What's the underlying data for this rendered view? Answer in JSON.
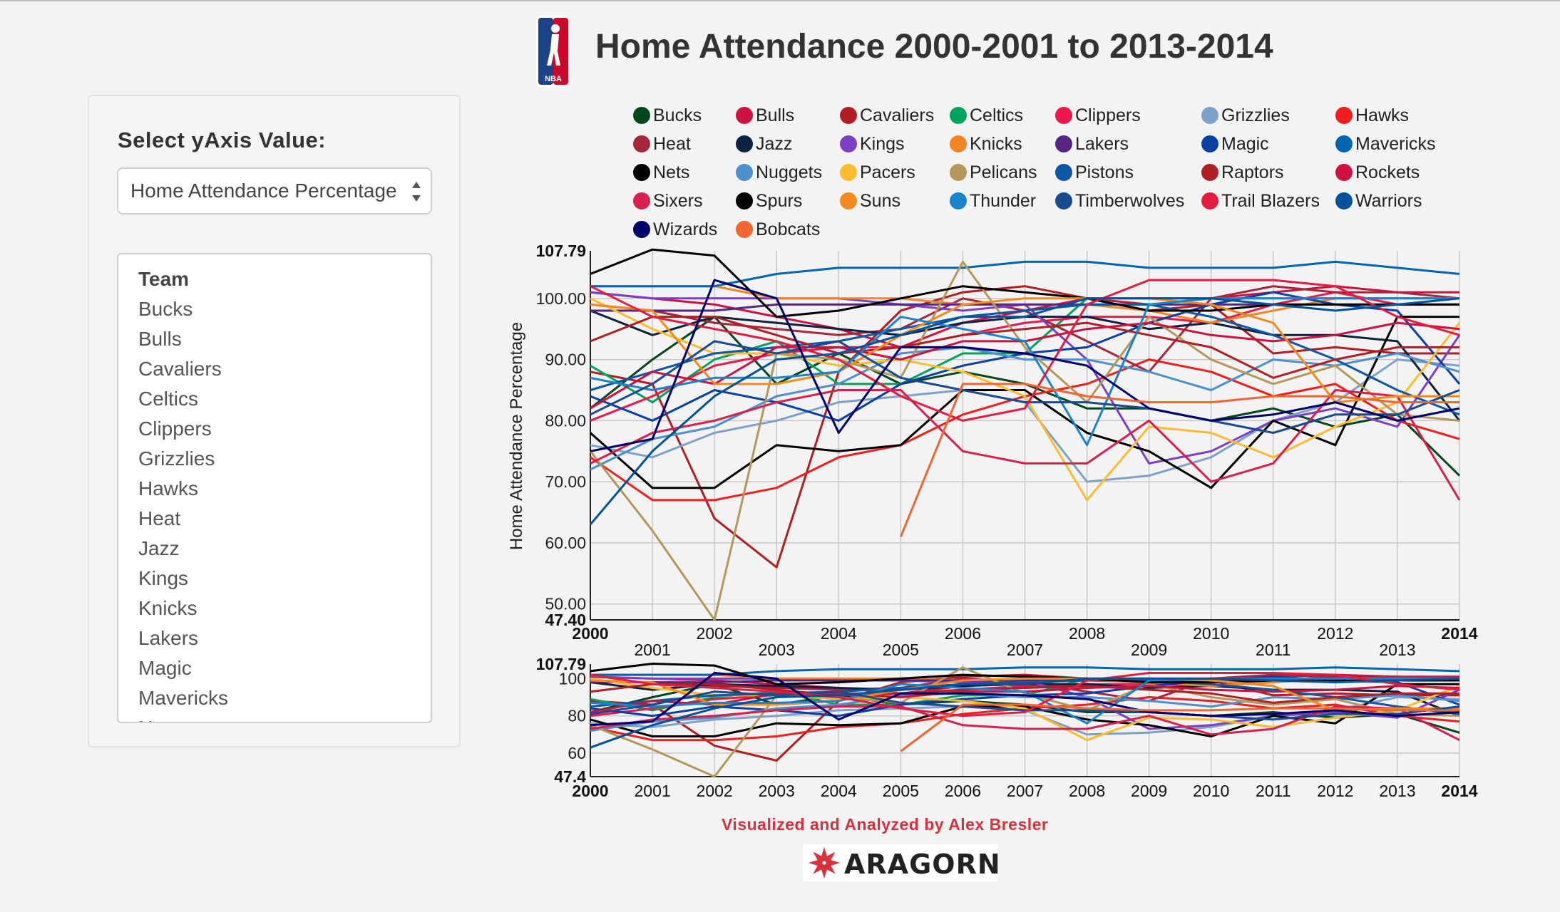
{
  "page": {
    "title": "Home Attendance 2000-2001 to 2013-2014",
    "credit": "Visualized and Analyzed by Alex Bresler",
    "company": "ARAGORN",
    "logo_text": "NBA"
  },
  "sidebar": {
    "label": "Select yAxis Value:",
    "select_value": "Home Attendance Percentage",
    "list_header": "Team",
    "teams": [
      "Bucks",
      "Bulls",
      "Cavaliers",
      "Celtics",
      "Clippers",
      "Grizzlies",
      "Hawks",
      "Heat",
      "Jazz",
      "Kings",
      "Knicks",
      "Lakers",
      "Magic",
      "Mavericks",
      "Nets"
    ]
  },
  "colors": {
    "background": "#f3f3f3",
    "grid": "#c8c8c8",
    "credit": "#d6313c"
  },
  "chart_data": [
    {
      "type": "line",
      "ylabel": "Home Attendance Percentage",
      "xlabel": "",
      "xlim": [
        2000,
        2014
      ],
      "ylim": [
        47.4,
        107.79
      ],
      "y_ticks": [
        "50.00",
        "60.00",
        "70.00",
        "80.00",
        "90.00",
        "100.00"
      ],
      "y_min_label": "47.40",
      "y_max_label": "107.79",
      "x_ticks_row1": [
        "2000",
        "2002",
        "2004",
        "2006",
        "2008",
        "2010",
        "2012",
        "2014"
      ],
      "x_ticks_row2": [
        "2001",
        "2003",
        "2005",
        "2007",
        "2009",
        "2011",
        "2013"
      ],
      "grid": true,
      "legend": "top",
      "x": [
        2000,
        2001,
        2002,
        2003,
        2004,
        2005,
        2006,
        2007,
        2008,
        2009,
        2010,
        2011,
        2012,
        2013,
        2014
      ],
      "series": [
        {
          "name": "Bucks",
          "color": "#00471b",
          "values": [
            82,
            90,
            97,
            86,
            91,
            86,
            88,
            86,
            82,
            82,
            80,
            82,
            79,
            81,
            71
          ]
        },
        {
          "name": "Bulls",
          "color": "#ce1141",
          "values": [
            101,
            100,
            99,
            97,
            95,
            92,
            96,
            98,
            100,
            99,
            100,
            101,
            102,
            101,
            101
          ]
        },
        {
          "name": "Cavaliers",
          "color": "#b01e23",
          "values": [
            88,
            86,
            64,
            56,
            88,
            98,
            101,
            102,
            100,
            98,
            99,
            91,
            92,
            91,
            91
          ]
        },
        {
          "name": "Celtics",
          "color": "#00a35c",
          "values": [
            89,
            83,
            90,
            93,
            86,
            86,
            91,
            91,
            100,
            100,
            100,
            100,
            100,
            100,
            100
          ]
        },
        {
          "name": "Clippers",
          "color": "#ed174c",
          "values": [
            80,
            84,
            89,
            91,
            92,
            92,
            94,
            96,
            97,
            97,
            96,
            99,
            101,
            99,
            99
          ]
        },
        {
          "name": "Grizzlies",
          "color": "#7ea1c9",
          "values": [
            76,
            74,
            78,
            80,
            83,
            84,
            85,
            83,
            70,
            71,
            74,
            80,
            83,
            90,
            89
          ]
        },
        {
          "name": "Hawks",
          "color": "#f21d1d",
          "values": [
            74,
            67,
            67,
            69,
            74,
            76,
            81,
            84,
            86,
            90,
            88,
            84,
            86,
            80,
            77
          ]
        },
        {
          "name": "Heat",
          "color": "#a6263c",
          "values": [
            99,
            98,
            96,
            95,
            94,
            95,
            100,
            98,
            93,
            88,
            100,
            102,
            101,
            101,
            100
          ]
        },
        {
          "name": "Jazz",
          "color": "#0c2340",
          "values": [
            98,
            94,
            97,
            96,
            95,
            94,
            96,
            97,
            97,
            95,
            96,
            94,
            94,
            93,
            80
          ]
        },
        {
          "name": "Kings",
          "color": "#7b3fc4",
          "values": [
            101,
            100,
            100,
            100,
            100,
            99,
            98,
            99,
            90,
            73,
            75,
            80,
            82,
            79,
            94
          ]
        },
        {
          "name": "Knicks",
          "color": "#f58426",
          "values": [
            102,
            102,
            102,
            100,
            100,
            100,
            99,
            99,
            99,
            98,
            96,
            98,
            100,
            100,
            100
          ]
        },
        {
          "name": "Lakers",
          "color": "#552583",
          "values": [
            98,
            98,
            98,
            99,
            99,
            99,
            99,
            99,
            99,
            99,
            99,
            99,
            99,
            99,
            99
          ]
        },
        {
          "name": "Magic",
          "color": "#0a3fa3",
          "values": [
            84,
            80,
            85,
            83,
            80,
            86,
            89,
            91,
            92,
            96,
            99,
            101,
            99,
            98,
            86
          ]
        },
        {
          "name": "Mavericks",
          "color": "#0064b1",
          "values": [
            102,
            102,
            102,
            104,
            105,
            105,
            105,
            106,
            106,
            105,
            105,
            105,
            106,
            105,
            104
          ]
        },
        {
          "name": "Nets",
          "color": "#000000",
          "values": [
            78,
            69,
            69,
            76,
            75,
            76,
            85,
            85,
            78,
            75,
            69,
            80,
            76,
            97,
            97
          ]
        },
        {
          "name": "Nuggets",
          "color": "#4d90cd",
          "values": [
            72,
            77,
            79,
            84,
            86,
            91,
            92,
            90,
            90,
            88,
            85,
            90,
            89,
            91,
            88
          ]
        },
        {
          "name": "Pacers",
          "color": "#fdbb30",
          "values": [
            100,
            95,
            91,
            91,
            89,
            90,
            88,
            84,
            67,
            79,
            78,
            74,
            79,
            83,
            96
          ]
        },
        {
          "name": "Pelicans",
          "color": "#b4975a",
          "values": [
            75,
            62,
            47.4,
            91,
            90,
            87,
            106,
            92,
            83,
            97,
            90,
            86,
            89,
            81,
            80
          ]
        },
        {
          "name": "Pistons",
          "color": "#0b57a4",
          "values": [
            85,
            88,
            91,
            92,
            93,
            95,
            97,
            98,
            99,
            99,
            97,
            94,
            90,
            85,
            81
          ]
        },
        {
          "name": "Raptors",
          "color": "#ae2025",
          "values": [
            93,
            97,
            97,
            94,
            91,
            92,
            94,
            95,
            96,
            94,
            92,
            87,
            90,
            92,
            92
          ]
        },
        {
          "name": "Rockets",
          "color": "#ce1141",
          "values": [
            82,
            88,
            86,
            92,
            92,
            90,
            93,
            93,
            95,
            96,
            94,
            93,
            94,
            96,
            95
          ]
        },
        {
          "name": "Sixers",
          "color": "#d8204d",
          "values": [
            73,
            78,
            80,
            83,
            85,
            85,
            75,
            73,
            73,
            80,
            70,
            73,
            85,
            84,
            67
          ]
        },
        {
          "name": "Spurs",
          "color": "#000000",
          "values": [
            104,
            108,
            107,
            97,
            98,
            100,
            102,
            101,
            100,
            98,
            98,
            99,
            99,
            99,
            99
          ]
        },
        {
          "name": "Suns",
          "color": "#f48a1d",
          "values": [
            99,
            98,
            86,
            86,
            88,
            94,
            99,
            100,
            100,
            100,
            99,
            96,
            83,
            84,
            84
          ]
        },
        {
          "name": "Thunder",
          "color": "#1a83ce",
          "values": [
            87,
            85,
            87,
            87,
            88,
            97,
            95,
            93,
            76,
            99,
            100,
            100,
            100,
            100,
            100
          ]
        },
        {
          "name": "Timberwolves",
          "color": "#1b4b8f",
          "values": [
            81,
            86,
            93,
            91,
            93,
            87,
            85,
            83,
            83,
            82,
            80,
            78,
            81,
            81,
            85
          ]
        },
        {
          "name": "Trail Blazers",
          "color": "#e21d41",
          "values": [
            102,
            97,
            95,
            93,
            90,
            84,
            80,
            82,
            99,
            103,
            103,
            103,
            102,
            97,
            94
          ]
        },
        {
          "name": "Warriors",
          "color": "#00539b",
          "values": [
            63,
            75,
            84,
            90,
            91,
            94,
            97,
            97,
            100,
            100,
            100,
            99,
            98,
            99,
            100
          ]
        },
        {
          "name": "Wizards",
          "color": "#00006d",
          "values": [
            75,
            77,
            103,
            100,
            78,
            92,
            92,
            91,
            89,
            82,
            80,
            81,
            83,
            80,
            82
          ]
        },
        {
          "name": "Bobcats",
          "color": "#f26532",
          "values": [
            null,
            null,
            null,
            null,
            null,
            61,
            86,
            86,
            84,
            83,
            83,
            84,
            84,
            83,
            83
          ]
        }
      ]
    },
    {
      "type": "line",
      "xlim": [
        2000,
        2014
      ],
      "ylim": [
        47.4,
        107.79
      ],
      "y_ticks": [
        "60",
        "80",
        "100"
      ],
      "y_min_label": "47.4",
      "y_max_label": "107.79",
      "x_ticks": [
        "2000",
        "2001",
        "2002",
        "2003",
        "2004",
        "2005",
        "2006",
        "2007",
        "2008",
        "2009",
        "2010",
        "2011",
        "2012",
        "2013",
        "2014"
      ],
      "grid": true
    }
  ]
}
